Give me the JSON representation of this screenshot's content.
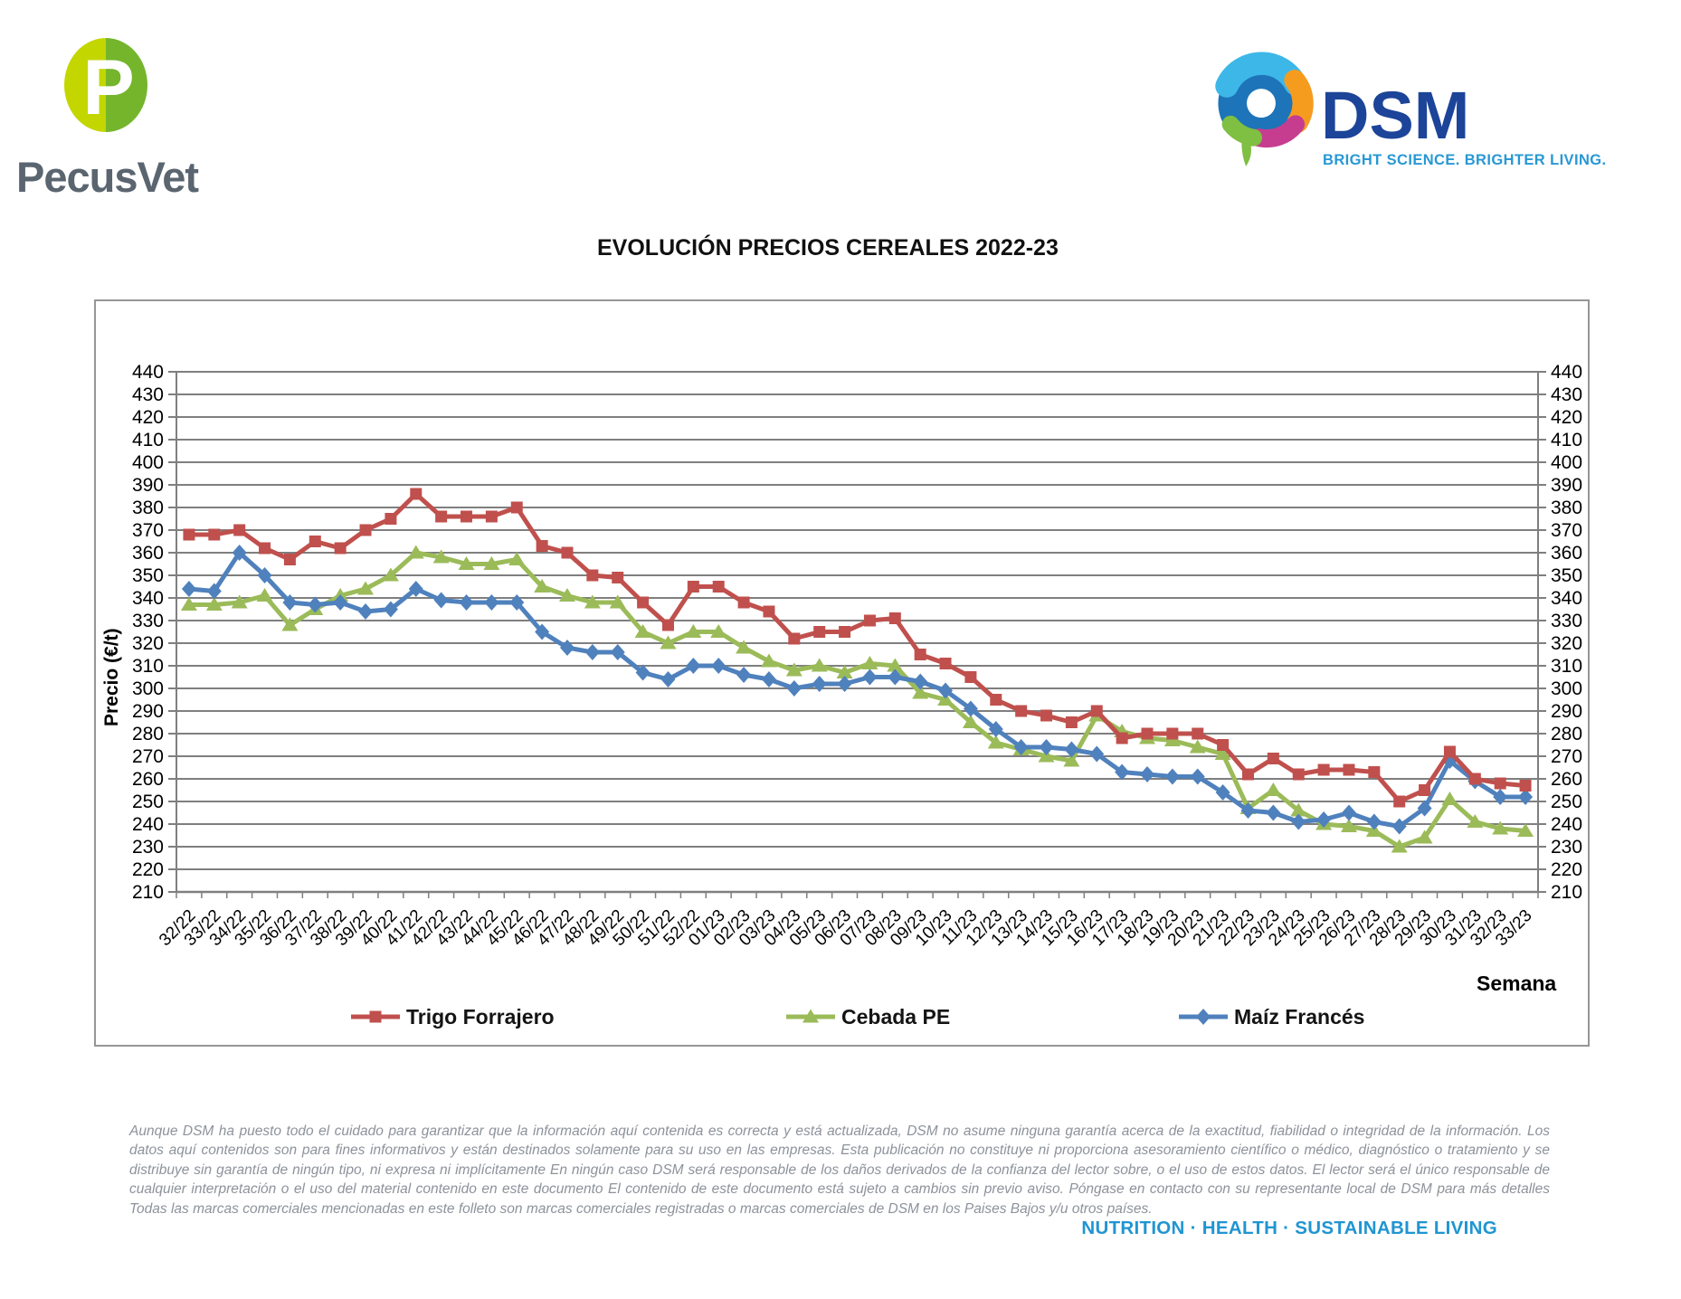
{
  "header": {
    "pecusvet_logo_text": "PecusVet",
    "pecusvet_colors": {
      "left": "#c3d600",
      "right": "#74b52c",
      "text": "#5a6570"
    },
    "dsm_logo_text": "DSM",
    "dsm_tagline": "BRIGHT SCIENCE. BRIGHTER LIVING.",
    "dsm_colors": {
      "word": "#1c4499",
      "tagline": "#2898d5"
    }
  },
  "chart_data": {
    "type": "line",
    "title": "EVOLUCIÓN PRECIOS CEREALES 2022-23",
    "xlabel": "Semana",
    "ylabel": "Precio (€/t)",
    "ylim": [
      210,
      440
    ],
    "ytick_step": 10,
    "grid": true,
    "legend_position": "bottom",
    "categories": [
      "32/22",
      "33/22",
      "34/22",
      "35/22",
      "36/22",
      "37/22",
      "38/22",
      "39/22",
      "40/22",
      "41/22",
      "42/22",
      "43/22",
      "44/22",
      "45/22",
      "46/22",
      "47/22",
      "48/22",
      "49/22",
      "50/22",
      "51/22",
      "52/22",
      "01/23",
      "02/23",
      "03/23",
      "04/23",
      "05/23",
      "06/23",
      "07/23",
      "08/23",
      "09/23",
      "10/23",
      "11/23",
      "12/23",
      "13/23",
      "14/23",
      "15/23",
      "16/23",
      "17/23",
      "18/23",
      "19/23",
      "20/23",
      "21/23",
      "22/23",
      "23/23",
      "24/23",
      "25/23",
      "26/23",
      "27/23",
      "28/23",
      "29/23",
      "30/23",
      "31/23",
      "32/23",
      "33/23"
    ],
    "series": [
      {
        "name": "Trigo Forrajero",
        "color": "#c0504d",
        "marker": "square",
        "values": [
          368,
          368,
          370,
          362,
          357,
          365,
          362,
          370,
          375,
          386,
          376,
          376,
          376,
          380,
          363,
          360,
          350,
          349,
          338,
          328,
          345,
          345,
          338,
          334,
          322,
          325,
          325,
          330,
          331,
          315,
          311,
          305,
          295,
          290,
          288,
          285,
          290,
          278,
          280,
          280,
          280,
          275,
          262,
          269,
          262,
          264,
          264,
          263,
          250,
          255,
          272,
          260,
          258,
          257
        ]
      },
      {
        "name": "Cebada PE",
        "color": "#9bbb59",
        "marker": "triangle",
        "values": [
          337,
          337,
          338,
          341,
          328,
          335,
          341,
          344,
          350,
          360,
          358,
          355,
          355,
          357,
          345,
          341,
          338,
          338,
          325,
          320,
          325,
          325,
          318,
          312,
          308,
          310,
          307,
          311,
          310,
          298,
          295,
          285,
          276,
          273,
          270,
          268,
          288,
          281,
          278,
          277,
          274,
          271,
          247,
          255,
          246,
          240,
          239,
          237,
          230,
          234,
          251,
          241,
          238,
          237
        ]
      },
      {
        "name": "Maíz Francés",
        "color": "#4f81bd",
        "marker": "diamond",
        "values": [
          344,
          343,
          360,
          350,
          338,
          337,
          338,
          334,
          335,
          344,
          339,
          338,
          338,
          338,
          325,
          318,
          316,
          316,
          307,
          304,
          310,
          310,
          306,
          304,
          300,
          302,
          302,
          305,
          305,
          303,
          299,
          291,
          282,
          274,
          274,
          273,
          271,
          263,
          262,
          261,
          261,
          254,
          246,
          245,
          241,
          242,
          245,
          241,
          239,
          247,
          268,
          259,
          252,
          252
        ]
      }
    ]
  },
  "footer": {
    "disclaimer": "Aunque DSM ha puesto todo el cuidado para garantizar que la información aquí contenida es correcta y está actualizada, DSM no asume ninguna garantía acerca de la exactitud, fiabilidad o integridad de la información. Los datos aquí contenidos son para fines informativos y están destinados solamente para su uso en las empresas. Esta publicación no constituye ni proporciona asesoramiento científico o médico, diagnóstico o tratamiento y se distribuye sin garantía de ningún tipo, ni expresa ni implícitamente En ningún caso DSM será responsable de los daños derivados de la confianza del lector sobre, o el uso de estos datos. El lector será el único responsable de cualquier interpretación o el uso del material contenido en este documento El contenido de este documento está sujeto a cambios sin previo aviso. Póngase en contacto con su representante local de DSM para más detalles Todas las marcas comerciales mencionadas en este folleto son marcas comerciales registradas o marcas comerciales de DSM en los Paises Bajos y/u otros países.",
    "tagline": "NUTRITION · HEALTH · SUSTAINABLE LIVING"
  }
}
